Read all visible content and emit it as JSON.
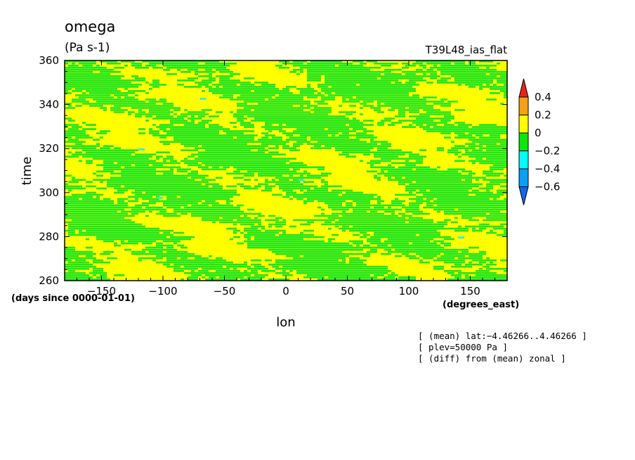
{
  "chart_data": {
    "type": "heatmap",
    "title": "omega",
    "units": "(Pa s-1)",
    "dataset_label": "T39L48_ias_flat",
    "xlabel": "lon",
    "ylabel": "time",
    "xunits": "(degrees_east)",
    "yunits": "(days since 0000-01-01)",
    "xlim": [
      -180,
      180
    ],
    "ylim": [
      260,
      360
    ],
    "xticks": [
      -150,
      -100,
      -50,
      0,
      50,
      100,
      150
    ],
    "yticks": [
      260,
      280,
      300,
      320,
      340,
      360
    ],
    "xtick_labels": [
      "−150",
      "−100",
      "−50",
      "0",
      "50",
      "100",
      "150"
    ],
    "ytick_labels": [
      "260",
      "280",
      "300",
      "320",
      "340",
      "360"
    ],
    "colorbar": {
      "levels": [
        -0.6,
        -0.4,
        -0.2,
        0,
        0.2,
        0.4
      ],
      "labels": [
        "0.4",
        "0.2",
        "0",
        "−0.2",
        "−0.4",
        "−0.6"
      ],
      "colors": [
        "#e8231b",
        "#f79f16",
        "#ffff00",
        "#0ee60e",
        "#00ffff",
        "#0aa0f6",
        "#1565e8"
      ],
      "extend": "both"
    },
    "dominant_classes": {
      "-0.2..0": "#1fe61f",
      "0..0.2": "#ffff00",
      "-0.4..-0.2": "#19f0f0"
    },
    "notes": [
      "[ (mean) lat:−4.46266..4.46266 ]",
      "[ plev=50000 Pa ]",
      "[ (diff) from (mean) zonal ]"
    ]
  }
}
